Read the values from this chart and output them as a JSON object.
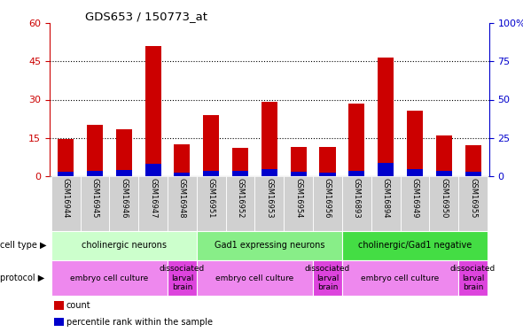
{
  "title": "GDS653 / 150773_at",
  "samples": [
    "GSM16944",
    "GSM16945",
    "GSM16946",
    "GSM16947",
    "GSM16948",
    "GSM16951",
    "GSM16952",
    "GSM16953",
    "GSM16954",
    "GSM16956",
    "GSM16893",
    "GSM16894",
    "GSM16949",
    "GSM16950",
    "GSM16955"
  ],
  "count_values": [
    14.5,
    20.0,
    18.5,
    51.0,
    12.5,
    24.0,
    11.0,
    29.0,
    11.5,
    11.5,
    28.5,
    46.5,
    25.5,
    16.0,
    12.0
  ],
  "percentile_values": [
    2.5,
    3.5,
    4.0,
    8.0,
    2.0,
    3.5,
    3.5,
    4.5,
    2.5,
    2.0,
    3.5,
    8.5,
    4.5,
    3.5,
    2.5
  ],
  "left_ylim": [
    0,
    60
  ],
  "right_ylim": [
    0,
    100
  ],
  "left_yticks": [
    0,
    15,
    30,
    45,
    60
  ],
  "right_yticks": [
    0,
    25,
    50,
    75,
    100
  ],
  "right_yticklabels": [
    "0",
    "25",
    "50",
    "75",
    "100%"
  ],
  "bar_color_count": "#cc0000",
  "bar_color_percentile": "#0000cc",
  "bar_width": 0.55,
  "cell_type_groups": [
    {
      "label": "cholinergic neurons",
      "start": 0,
      "end": 5,
      "color": "#ccffcc"
    },
    {
      "label": "Gad1 expressing neurons",
      "start": 5,
      "end": 10,
      "color": "#88ee88"
    },
    {
      "label": "cholinergic/Gad1 negative",
      "start": 10,
      "end": 15,
      "color": "#44dd44"
    }
  ],
  "protocol_groups": [
    {
      "label": "embryo cell culture",
      "start": 0,
      "end": 4,
      "color": "#ee88ee"
    },
    {
      "label": "dissociated\nlarval\nbrain",
      "start": 4,
      "end": 5,
      "color": "#dd44dd"
    },
    {
      "label": "embryo cell culture",
      "start": 5,
      "end": 9,
      "color": "#ee88ee"
    },
    {
      "label": "dissociated\nlarval\nbrain",
      "start": 9,
      "end": 10,
      "color": "#dd44dd"
    },
    {
      "label": "embryo cell culture",
      "start": 10,
      "end": 14,
      "color": "#ee88ee"
    },
    {
      "label": "dissociated\nlarval\nbrain",
      "start": 14,
      "end": 15,
      "color": "#dd44dd"
    }
  ],
  "legend_items": [
    {
      "label": "count",
      "color": "#cc0000"
    },
    {
      "label": "percentile rank within the sample",
      "color": "#0000cc"
    }
  ],
  "cell_type_label": "cell type",
  "protocol_label": "protocol",
  "tick_color_left": "#cc0000",
  "tick_color_right": "#0000cc",
  "sample_bg_color": "#d0d0d0",
  "group_separator_colors": [
    "#ccffcc",
    "#88ee88",
    "#44dd44"
  ]
}
